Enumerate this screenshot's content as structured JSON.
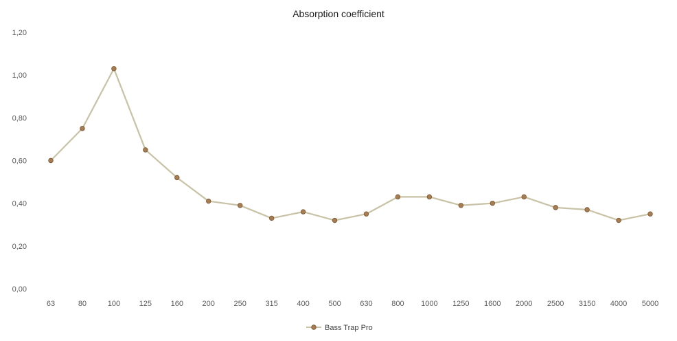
{
  "chart_data": {
    "type": "line",
    "title": "Absorption coefficient",
    "xlabel": "",
    "ylabel": "",
    "categories": [
      "63",
      "80",
      "100",
      "125",
      "160",
      "200",
      "250",
      "315",
      "400",
      "500",
      "630",
      "800",
      "1000",
      "1250",
      "1600",
      "2000",
      "2500",
      "3150",
      "4000",
      "5000"
    ],
    "series": [
      {
        "name": "Bass Trap Pro",
        "values": [
          0.6,
          0.75,
          1.03,
          0.65,
          0.52,
          0.41,
          0.39,
          0.33,
          0.36,
          0.32,
          0.35,
          0.43,
          0.43,
          0.39,
          0.4,
          0.43,
          0.38,
          0.37,
          0.32,
          0.35
        ]
      }
    ],
    "ylim": [
      0,
      1.2
    ],
    "yticks": [
      0,
      0.2,
      0.4,
      0.6,
      0.8,
      1.0,
      1.2
    ],
    "ytick_labels": [
      "0,00",
      "0,20",
      "0,40",
      "0,60",
      "0,80",
      "1,00",
      "1,20"
    ],
    "grid": false,
    "legend": "bottom",
    "colors": {
      "line": "#c8c3a6",
      "marker_fill": "#a67c52",
      "marker_stroke": "#7a5530"
    }
  }
}
